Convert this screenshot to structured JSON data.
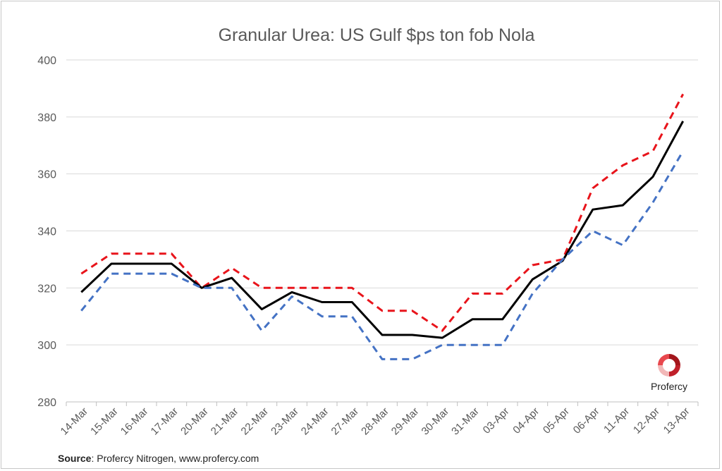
{
  "chart_data": {
    "type": "line",
    "title": "Granular Urea: US Gulf $ps ton fob Nola",
    "categories": [
      "14-Mar",
      "15-Mar",
      "16-Mar",
      "17-Mar",
      "20-Mar",
      "21-Mar",
      "22-Mar",
      "23-Mar",
      "24-Mar",
      "27-Mar",
      "28-Mar",
      "29-Mar",
      "30-Mar",
      "31-Mar",
      "03-Apr",
      "04-Apr",
      "05-Apr",
      "06-Apr",
      "11-Apr",
      "12-Apr",
      "13-Apr"
    ],
    "ylim": [
      280,
      400
    ],
    "yticks": [
      280,
      300,
      320,
      340,
      360,
      380,
      400
    ],
    "grid": true,
    "series": [
      {
        "color": "#e8141b",
        "style": "dashed",
        "values": [
          325,
          332,
          332,
          332,
          320,
          327,
          320,
          320,
          320,
          320,
          312,
          312,
          305,
          318,
          318,
          328,
          330,
          355,
          363,
          368,
          388
        ]
      },
      {
        "color": "#000000",
        "style": "solid",
        "values": [
          318.5,
          328.5,
          328.5,
          328.5,
          320,
          323.5,
          312.5,
          318.5,
          315,
          315,
          303.5,
          303.5,
          302.5,
          309,
          309,
          323,
          329.5,
          347.5,
          349,
          359,
          378.5
        ]
      },
      {
        "color": "#4472c4",
        "style": "dashed",
        "values": [
          312,
          325,
          325,
          325,
          320,
          320,
          305,
          317,
          310,
          310,
          295,
          295,
          300,
          300,
          300,
          318,
          330,
          340,
          335,
          350,
          368
        ]
      }
    ]
  },
  "source": {
    "label": "Source",
    "text": ": Profercy Nitrogen, www.profercy.com"
  },
  "logo": {
    "text": "Profercy"
  }
}
